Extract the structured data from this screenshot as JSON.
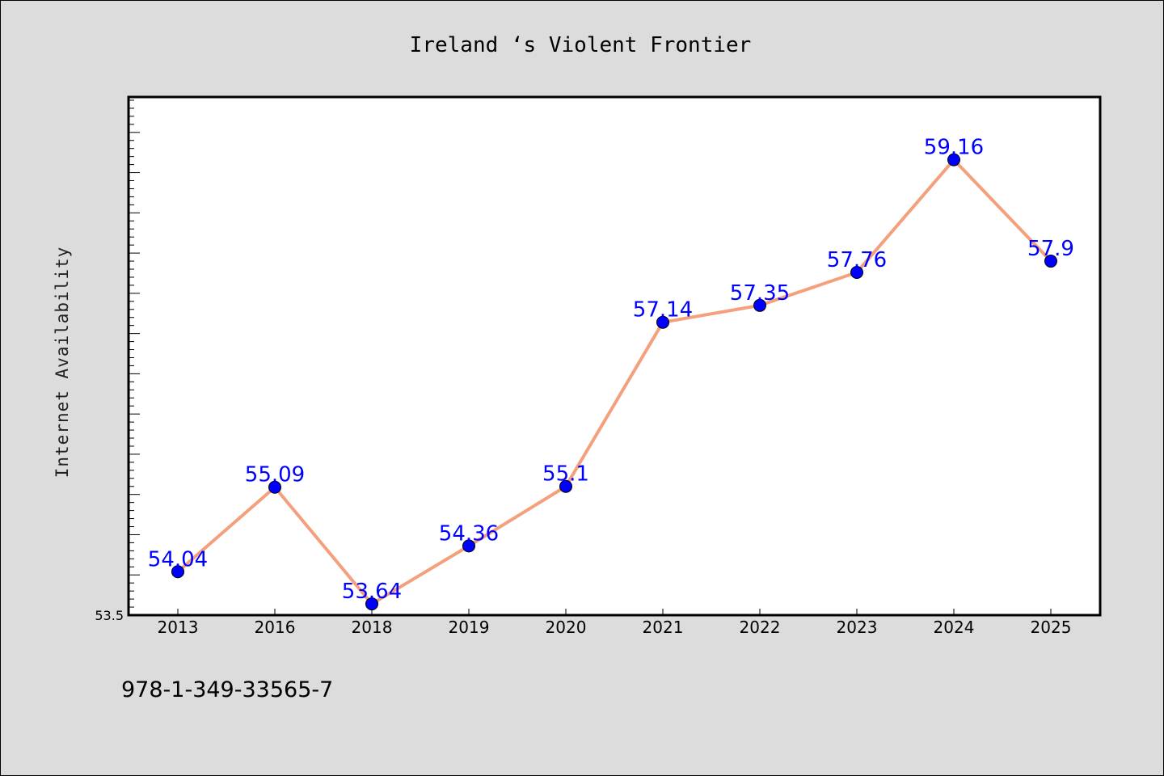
{
  "chart_data": {
    "type": "line",
    "title": "Ireland ‘s Violent Frontier",
    "xlabel": "",
    "ylabel": "Internet Availability",
    "categories": [
      "2013",
      "2016",
      "2018",
      "2019",
      "2020",
      "2021",
      "2022",
      "2023",
      "2024",
      "2025"
    ],
    "series": [
      {
        "values": [
          54.04,
          55.09,
          53.64,
          54.36,
          55.1,
          57.14,
          57.35,
          57.76,
          59.16,
          57.9
        ],
        "data_labels": [
          "54.04",
          "55.09",
          "53.64",
          "54.36",
          "55.1",
          "57.14",
          "57.35",
          "57.76",
          "59.16",
          "57.9"
        ]
      }
    ],
    "ylim": [
      53.5,
      59.94
    ],
    "ytick_labels": [
      "53.5"
    ],
    "grid": false,
    "legend": "none",
    "colors": {
      "line": "#f4a07d",
      "marker": "#0000ff",
      "data_label": "#0000ff",
      "plot_background": "#ffffff",
      "figure_background": "#dcdcdc"
    }
  },
  "footnote": "978-1-349-33565-7"
}
